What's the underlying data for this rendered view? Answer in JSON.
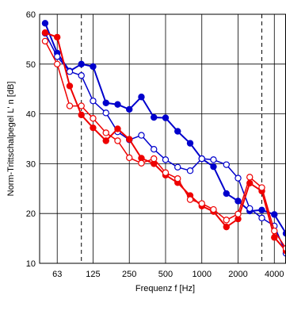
{
  "chart_data": {
    "type": "line",
    "xlabel": "Frequenz f [Hz]",
    "ylabel": "Norm-Trittschalpegel L' n [dB]",
    "xscale": "log",
    "xlim": [
      45,
      5000
    ],
    "ylim": [
      10,
      60
    ],
    "x_ticks": [
      63,
      125,
      250,
      500,
      1000,
      2000,
      4000
    ],
    "x_tick_labels": [
      "63",
      "125",
      "250",
      "500",
      "1000",
      "2000",
      "4000"
    ],
    "y_ticks": [
      10,
      20,
      30,
      40,
      50,
      60
    ],
    "y_tick_labels": [
      "10",
      "20",
      "30",
      "40",
      "50",
      "60"
    ],
    "grid": true,
    "vlines": [
      100,
      3150
    ],
    "x": [
      50,
      63,
      80,
      100,
      125,
      160,
      200,
      250,
      315,
      400,
      500,
      630,
      800,
      1000,
      1250,
      1600,
      2000,
      2500,
      3150,
      4000,
      5000
    ],
    "series": [
      {
        "color": "#0000cc",
        "filled": true,
        "values": [
          58.2,
          52.2,
          48.6,
          50.0,
          49.5,
          42.2,
          41.9,
          40.9,
          43.4,
          39.3,
          39.2,
          36.5,
          34.1,
          31.0,
          29.4,
          24.0,
          22.5,
          20.5,
          20.7,
          19.8,
          16.0
        ]
      },
      {
        "color": "#0000cc",
        "filled": false,
        "values": [
          56.2,
          51.5,
          48.5,
          47.7,
          42.6,
          40.2,
          36.4,
          34.8,
          35.7,
          32.9,
          30.8,
          29.3,
          28.6,
          31.0,
          30.8,
          29.8,
          27.1,
          21.0,
          19.1,
          17.5,
          12.0
        ]
      },
      {
        "color": "#ee0000",
        "filled": true,
        "values": [
          56.3,
          55.4,
          45.6,
          39.8,
          37.2,
          34.6,
          37.0,
          34.9,
          31.1,
          30.0,
          27.7,
          26.2,
          23.6,
          21.5,
          20.4,
          17.3,
          18.9,
          26.1,
          24.5,
          15.2,
          12.5
        ]
      },
      {
        "color": "#ee0000",
        "filled": false,
        "values": [
          54.6,
          50.0,
          41.6,
          41.6,
          39.1,
          36.2,
          34.6,
          31.2,
          30.1,
          31.0,
          28.2,
          27.0,
          22.8,
          22.0,
          20.8,
          18.7,
          19.9,
          27.3,
          25.2,
          16.5,
          13.0
        ]
      }
    ]
  }
}
